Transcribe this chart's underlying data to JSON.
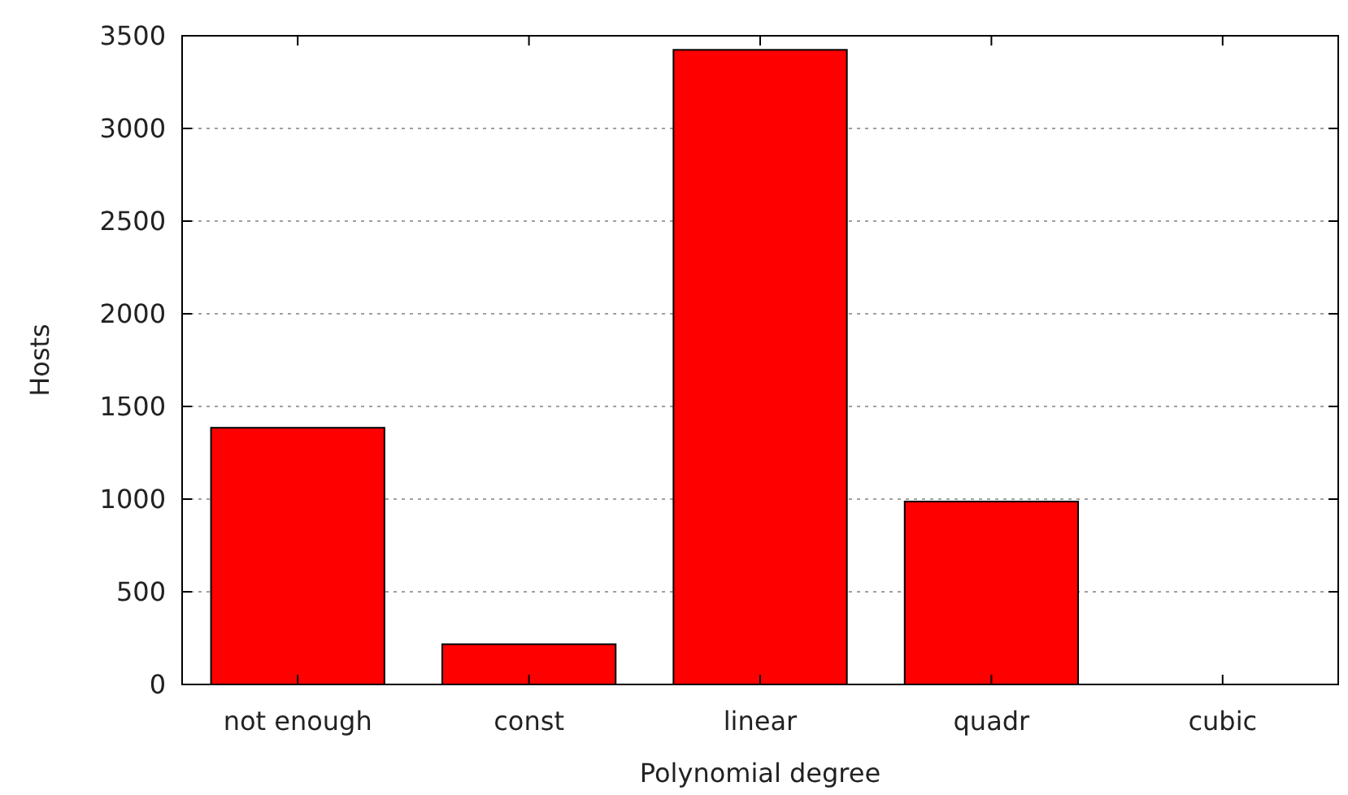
{
  "chart_data": {
    "type": "bar",
    "xlabel": "Polynomial degree",
    "ylabel": "Hosts",
    "categories": [
      "not enough",
      "const",
      "linear",
      "quadr",
      "cubic"
    ],
    "values": [
      1385,
      217,
      3424,
      987,
      0
    ],
    "color": "#ff0000",
    "ylim": [
      0,
      3500
    ],
    "yticks": [
      0,
      500,
      1000,
      1500,
      2000,
      2500,
      3000,
      3500
    ],
    "grid": "y"
  }
}
